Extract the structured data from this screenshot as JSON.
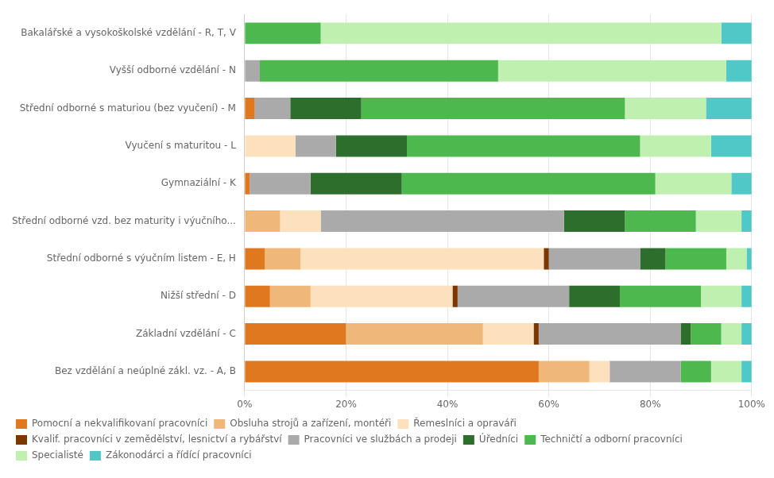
{
  "chart_data": {
    "type": "bar",
    "orientation": "horizontal",
    "stacked": true,
    "grid": true,
    "legend": "bottom",
    "categories": [
      "Bakalářské a vysokoškolské vzdělání - R, T, V",
      "Vyšší odborné vzdělání - N",
      "Střední odborné s maturiou (bez vyučení) - M",
      "Vyučení s maturitou - L",
      "Gymnaziální - K",
      "Střední odborné vzd. bez maturity i výučního...",
      "Střední odborné s výučním listem - E, H",
      "Nižší střední - D",
      "Základní vzdělání - C",
      "Bez vzdělání a neúplné zákl. vz. - A, B"
    ],
    "series": [
      {
        "name": "Pomocní a nekvalifikovaní pracovníci",
        "color": "#e07820",
        "values": [
          0,
          0,
          2,
          0,
          1,
          0,
          4,
          5,
          20,
          58
        ]
      },
      {
        "name": "Obsluha strojů a zařízení, montéři",
        "color": "#f0b878",
        "values": [
          0,
          0,
          0,
          0,
          0,
          7,
          7,
          8,
          27,
          10
        ]
      },
      {
        "name": "Řemeslníci a opraváři",
        "color": "#fde0bc",
        "values": [
          0,
          0,
          0,
          10,
          0,
          8,
          48,
          28,
          10,
          4
        ]
      },
      {
        "name": "Kvalif. pracovníci v zemědělství, lesnictví a rybářství",
        "color": "#7a3800",
        "values": [
          0,
          0,
          0,
          0,
          0,
          0,
          1,
          1,
          1,
          0
        ]
      },
      {
        "name": "Pracovníci ve službách a prodeji",
        "color": "#aaaaaa",
        "values": [
          0,
          3,
          7,
          8,
          12,
          48,
          18,
          22,
          28,
          14
        ]
      },
      {
        "name": "Úředníci",
        "color": "#2d6e2d",
        "values": [
          0,
          0,
          14,
          14,
          18,
          12,
          5,
          10,
          2,
          0
        ]
      },
      {
        "name": "Techničtí a odborní pracovníci",
        "color": "#4db84d",
        "values": [
          15,
          47,
          52,
          46,
          50,
          14,
          12,
          16,
          6,
          6
        ]
      },
      {
        "name": "Specialisté",
        "color": "#c0f0b0",
        "values": [
          79,
          45,
          16,
          14,
          15,
          9,
          4,
          8,
          4,
          6
        ]
      },
      {
        "name": "Zákonodárci a řídící pracovníci",
        "color": "#50c8c8",
        "values": [
          6,
          5,
          9,
          8,
          4,
          2,
          1,
          2,
          2,
          2
        ]
      }
    ],
    "xlim": [
      0,
      100
    ],
    "xticks": [
      {
        "value": 0,
        "label": "0%"
      },
      {
        "value": 20,
        "label": "20%"
      },
      {
        "value": 40,
        "label": "40%"
      },
      {
        "value": 60,
        "label": "60%"
      },
      {
        "value": 80,
        "label": "80%"
      },
      {
        "value": 100,
        "label": "100%"
      }
    ]
  }
}
